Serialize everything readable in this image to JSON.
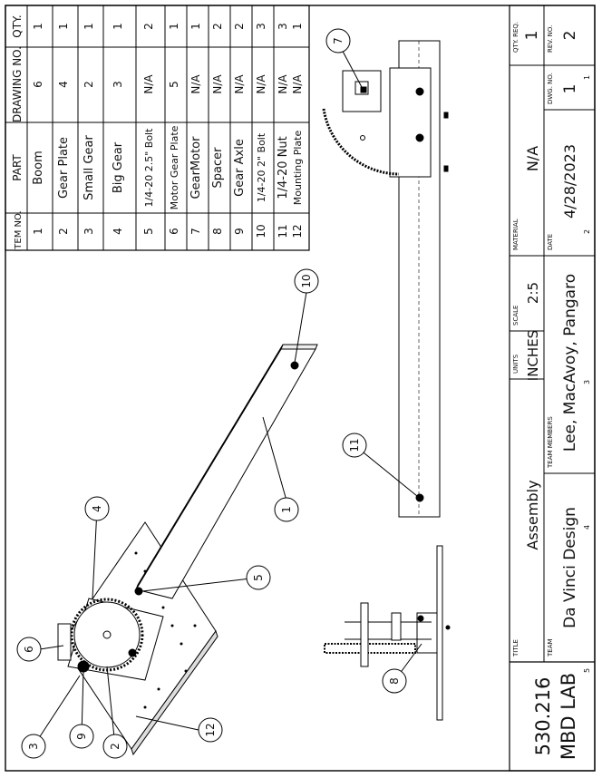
{
  "bom": {
    "headers": {
      "item": "ITEM NO.",
      "part": "PART",
      "drawing": "DRAWING NO.",
      "qty": "QTY."
    },
    "rows": [
      {
        "item": "1",
        "part": "Boom",
        "drawing": "6",
        "qty": "1"
      },
      {
        "item": "2",
        "part": "Gear Plate",
        "drawing": "4",
        "qty": "1"
      },
      {
        "item": "3",
        "part": "Small Gear",
        "drawing": "2",
        "qty": "1"
      },
      {
        "item": "4",
        "part": "Big Gear",
        "drawing": "3",
        "qty": "1"
      },
      {
        "item": "5",
        "part": "1/4-20 2.5\" Bolt",
        "drawing": "N/A",
        "qty": "2"
      },
      {
        "item": "6",
        "part": "Motor Gear Plate",
        "drawing": "5",
        "qty": "1"
      },
      {
        "item": "7",
        "part": "GearMotor",
        "drawing": "N/A",
        "qty": "1"
      },
      {
        "item": "8",
        "part": "Spacer",
        "drawing": "N/A",
        "qty": "2"
      },
      {
        "item": "9",
        "part": "Gear Axle",
        "drawing": "N/A",
        "qty": "2"
      },
      {
        "item": "10",
        "part": "1/4-20 2\" Bolt",
        "drawing": "N/A",
        "qty": "3"
      },
      {
        "item": "11",
        "part": "1/4-20 Nut",
        "drawing": "N/A",
        "qty": "3"
      },
      {
        "item": "12",
        "part": "Mounting Plate",
        "drawing": "N/A",
        "qty": "1"
      }
    ]
  },
  "balloons": {
    "b1": "1",
    "b2": "2",
    "b3": "3",
    "b4": "4",
    "b5": "5",
    "b6": "6",
    "b7": "7",
    "b8": "8",
    "b9": "9",
    "b10": "10",
    "b11": "11",
    "b12": "12"
  },
  "title_block": {
    "course": "530.216",
    "lab": "MBD LAB",
    "title_label": "TITLE",
    "title": "Assembly",
    "team_label": "TEAM",
    "team": "Da Vinci Design",
    "members_label": "TEAM MEMBERS",
    "members": "Lee, MacAvoy, Pangaro",
    "units_label": "UNITS",
    "units": "INCHES",
    "scale_label": "SCALE",
    "scale": "2:5",
    "material_label": "MATERIAL",
    "material": "N/A",
    "date_label": "DATE",
    "date": "4/28/2023",
    "dwg_label": "DWG. NO.",
    "dwg": "1",
    "rev_label": "REV. NO.",
    "rev": "2",
    "qty_label": "QTY. REQ.",
    "qty": "1"
  },
  "zones": {
    "z1": "1",
    "z2": "2",
    "z3": "3",
    "z4": "4",
    "z5": "5"
  }
}
